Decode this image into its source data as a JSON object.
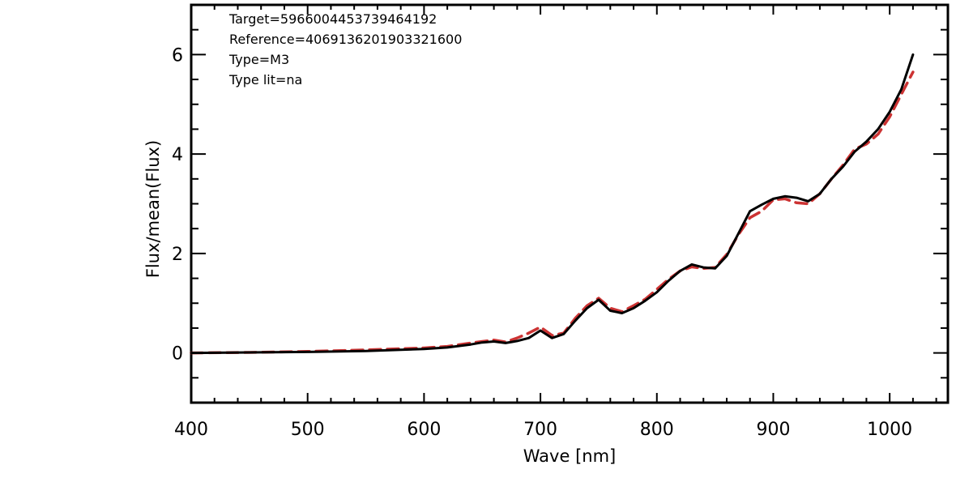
{
  "chart_data": {
    "type": "line",
    "title": "",
    "xlabel": "Wave [nm]",
    "ylabel": "Flux/mean(Flux)",
    "xlim": [
      400,
      1050
    ],
    "ylim": [
      -1,
      7
    ],
    "x_ticks": [
      400,
      500,
      600,
      700,
      800,
      900,
      1000
    ],
    "y_ticks": [
      0,
      2,
      4,
      6
    ],
    "grid": false,
    "annotations": [
      "Target=5966004453739464192",
      "Reference=4069136201903321600",
      "Type=M3",
      "Type lit=na"
    ],
    "series": [
      {
        "style": "solid",
        "color": "#000000",
        "x": [
          400,
          450,
          500,
          550,
          600,
          620,
          640,
          650,
          660,
          670,
          680,
          690,
          700,
          710,
          720,
          730,
          740,
          750,
          760,
          770,
          780,
          790,
          800,
          810,
          820,
          830,
          840,
          850,
          860,
          870,
          880,
          890,
          900,
          910,
          920,
          930,
          940,
          950,
          960,
          970,
          980,
          990,
          1000,
          1010,
          1020
        ],
        "y": [
          0.0,
          0.01,
          0.02,
          0.04,
          0.08,
          0.11,
          0.17,
          0.21,
          0.23,
          0.2,
          0.24,
          0.3,
          0.45,
          0.3,
          0.38,
          0.65,
          0.9,
          1.07,
          0.85,
          0.8,
          0.9,
          1.05,
          1.22,
          1.45,
          1.65,
          1.78,
          1.72,
          1.7,
          1.95,
          2.4,
          2.85,
          2.98,
          3.1,
          3.15,
          3.12,
          3.05,
          3.2,
          3.5,
          3.75,
          4.05,
          4.25,
          4.5,
          4.85,
          5.3,
          6.0
        ]
      },
      {
        "style": "dashed",
        "color": "#cc3333",
        "x": [
          400,
          450,
          500,
          550,
          600,
          620,
          640,
          650,
          660,
          670,
          680,
          690,
          700,
          710,
          720,
          730,
          740,
          750,
          760,
          770,
          780,
          790,
          800,
          810,
          820,
          830,
          840,
          850,
          860,
          870,
          880,
          890,
          900,
          910,
          920,
          930,
          940,
          950,
          960,
          970,
          980,
          990,
          1000,
          1010,
          1020
        ],
        "y": [
          0.0,
          0.01,
          0.03,
          0.06,
          0.1,
          0.13,
          0.2,
          0.23,
          0.26,
          0.22,
          0.3,
          0.4,
          0.52,
          0.35,
          0.4,
          0.7,
          0.95,
          1.1,
          0.9,
          0.83,
          0.95,
          1.08,
          1.28,
          1.48,
          1.65,
          1.73,
          1.7,
          1.72,
          1.98,
          2.38,
          2.72,
          2.85,
          3.08,
          3.1,
          3.02,
          3.0,
          3.2,
          3.5,
          3.78,
          4.1,
          4.2,
          4.4,
          4.75,
          5.2,
          5.65
        ]
      }
    ]
  }
}
